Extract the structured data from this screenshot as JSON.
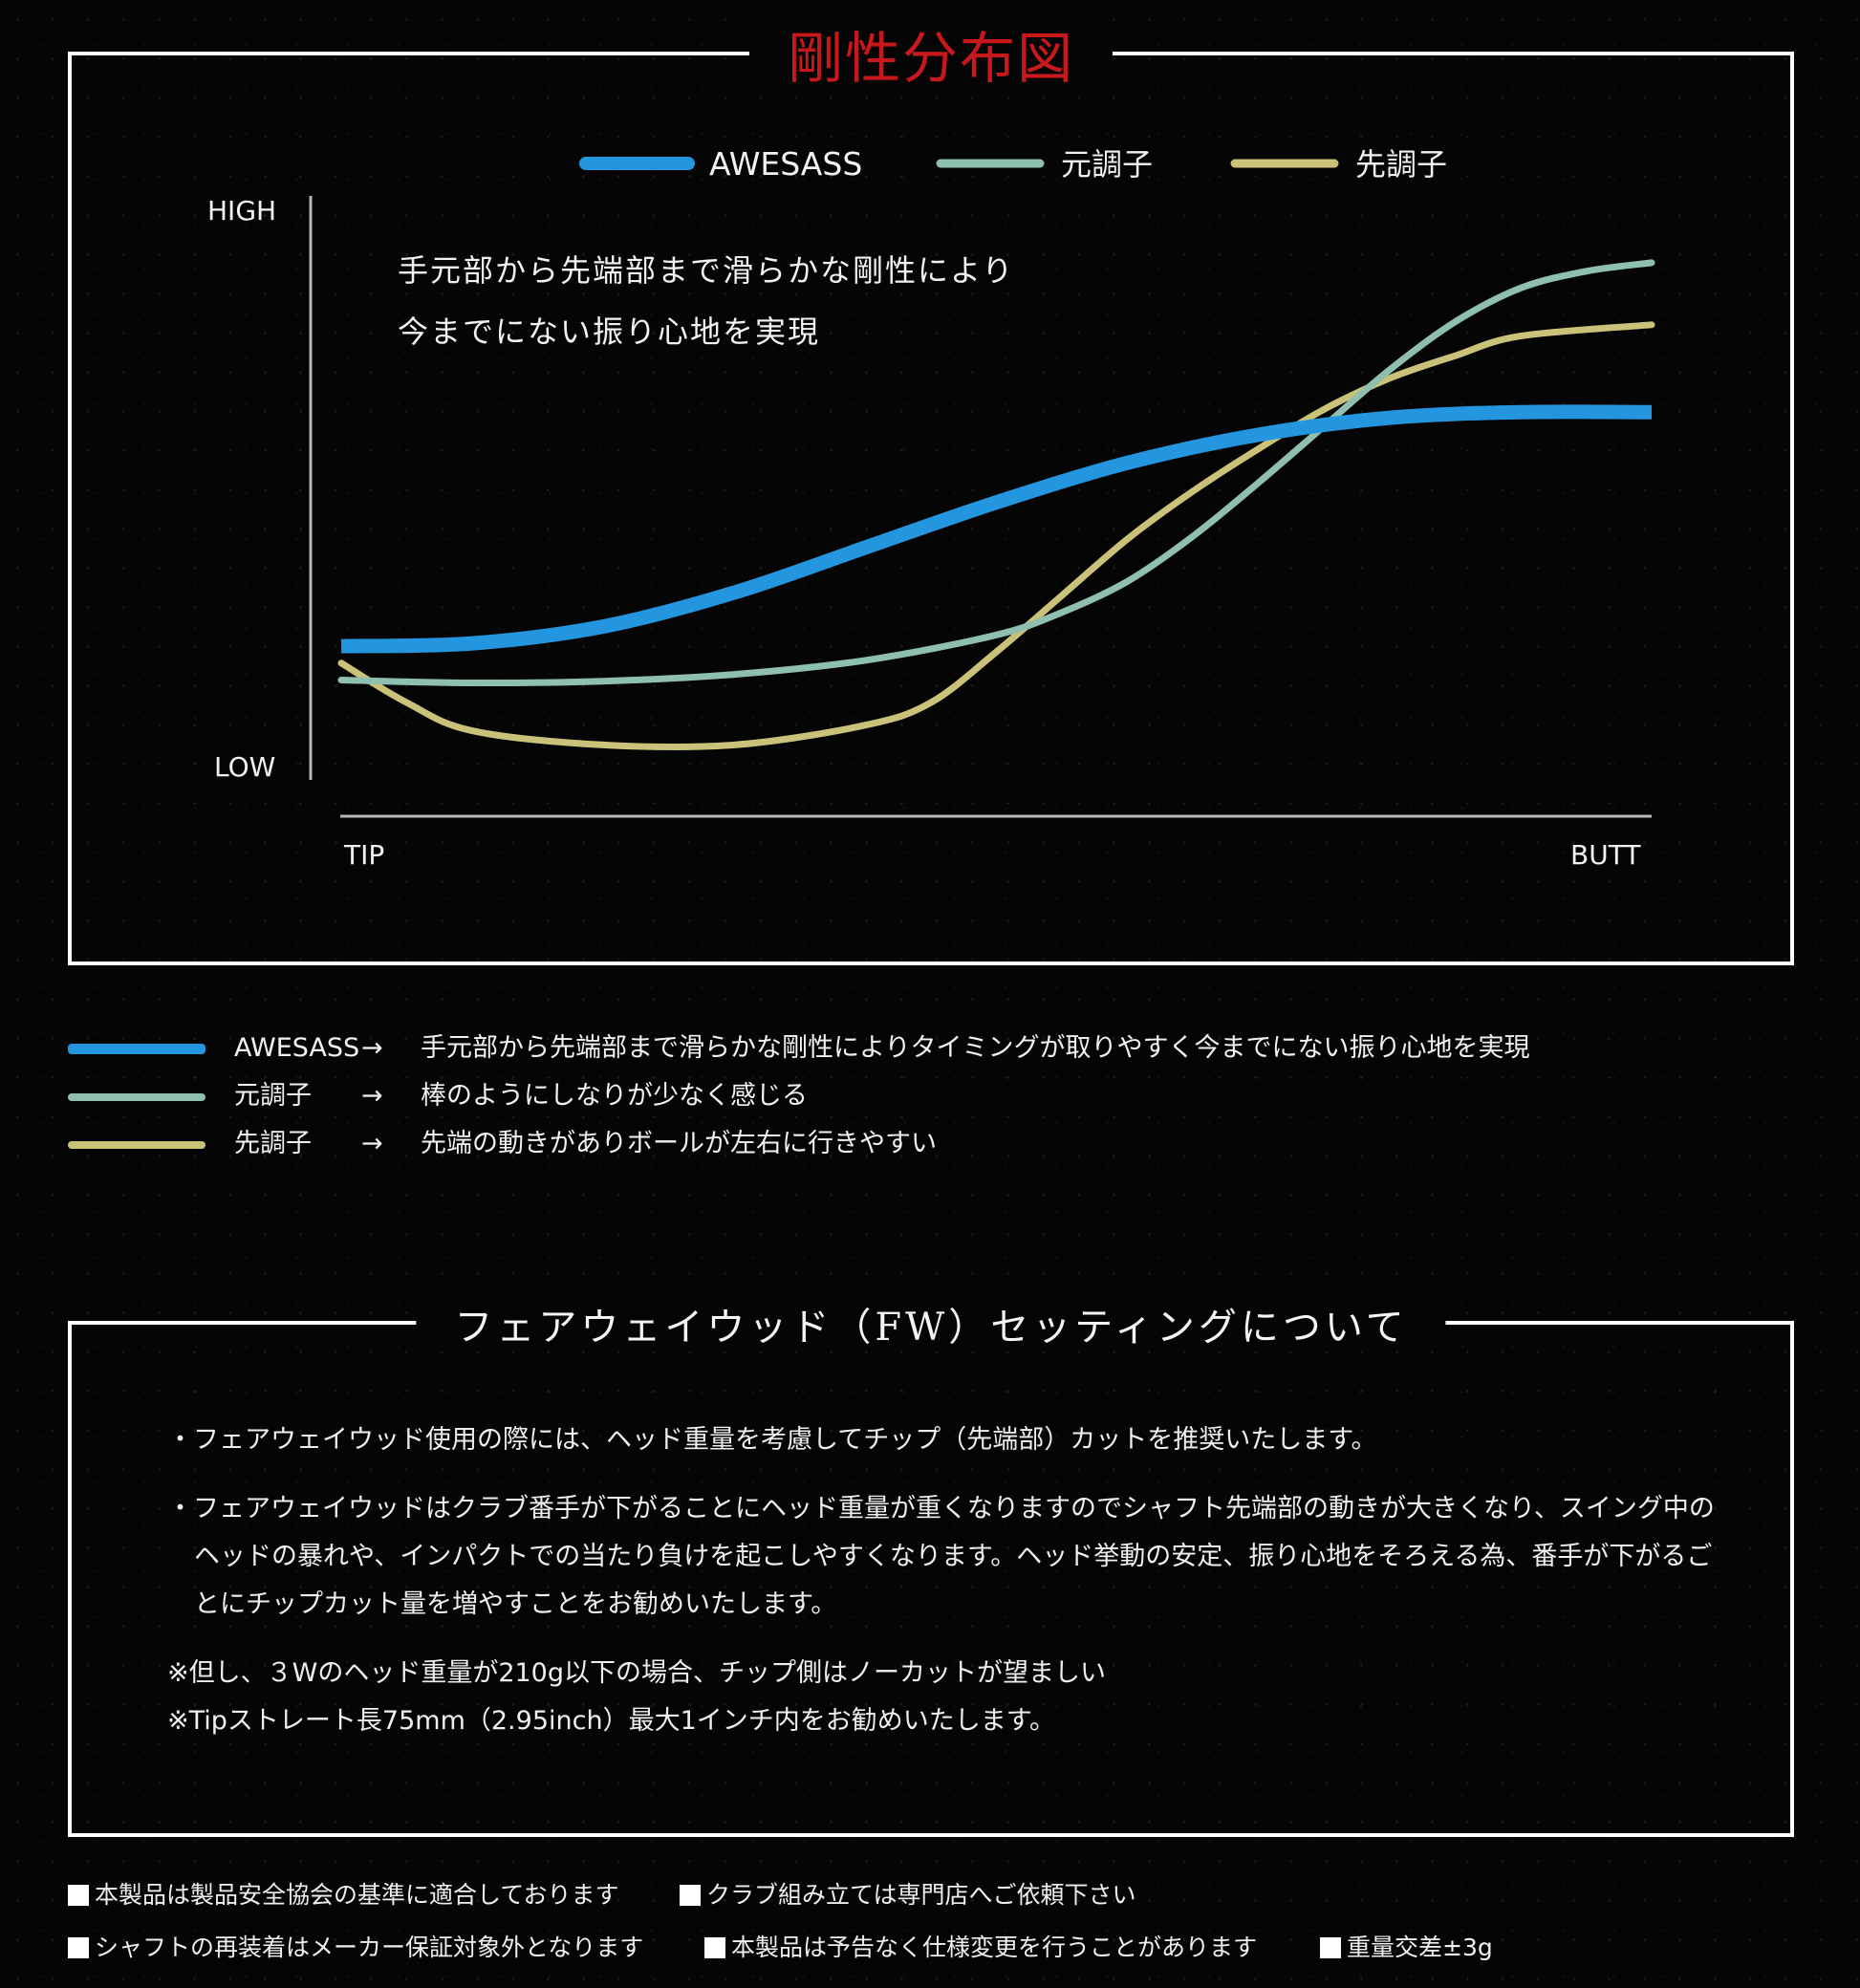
{
  "chart_data": {
    "type": "line",
    "title": "剛性分布図",
    "ylabel_high": "HIGH",
    "ylabel_low": "LOW",
    "xlabel_left": "TIP",
    "xlabel_right": "BUTT",
    "xlim": [
      0,
      100
    ],
    "ylim": [
      0,
      100
    ],
    "grid": false,
    "legend_position": "top-center",
    "annotation": [
      "手元部から先端部まで滑らかな剛性により",
      "今までにない振り心地を実現"
    ],
    "series": [
      {
        "name": "AWESASS",
        "color": "#2496e0",
        "x": [
          0,
          10,
          20,
          30,
          40,
          50,
          60,
          70,
          80,
          90,
          100
        ],
        "y": [
          21,
          21.5,
          24.5,
          30.5,
          38.5,
          46.5,
          53.5,
          58.5,
          61.5,
          62.5,
          62.5
        ]
      },
      {
        "name": "元調子",
        "color": "#8fbfae",
        "x": [
          0,
          10,
          20,
          30,
          40,
          50,
          55,
          60,
          65,
          70,
          75,
          80,
          85,
          90,
          95,
          100
        ],
        "y": [
          15,
          14.5,
          14.8,
          16,
          18.5,
          23,
          27,
          32.5,
          40.5,
          50,
          60,
          70,
          78.5,
          84.5,
          87.5,
          89
        ]
      },
      {
        "name": "先調子",
        "color": "#cbc27a",
        "x": [
          0,
          5,
          10,
          20,
          30,
          40,
          45,
          50,
          55,
          60,
          65,
          70,
          75,
          80,
          85,
          90,
          100
        ],
        "y": [
          18,
          11,
          6,
          3.5,
          3.5,
          7,
          11,
          20,
          30,
          40,
          48.5,
          56,
          63,
          68.5,
          72.5,
          76,
          78
        ]
      }
    ]
  },
  "legend_desc": [
    {
      "name": "AWESASS",
      "arrow": "→",
      "text": "手元部から先端部まで滑らかな剛性によりタイミングが取りやすく今までにない振り心地を実現",
      "color": "#2496e0"
    },
    {
      "name": "元調子",
      "arrow": "→",
      "text": "棒のようにしなりが少なく感じる",
      "color": "#8fbfae"
    },
    {
      "name": "先調子",
      "arrow": "→",
      "text": "先端の動きがありボールが左右に行きやすい",
      "color": "#cbc27a"
    }
  ],
  "fw": {
    "title": "フェアウェイウッド（FW）セッティングについて",
    "items": [
      "・フェアウェイウッド使用の際には、ヘッド重量を考慮してチップ（先端部）カットを推奨いたします。",
      "・フェアウェイウッドはクラブ番手が下がることにヘッド重量が重くなりますのでシャフト先端部の動きが大きくなり、スイング中のヘッドの暴れや、インパクトでの当たり負けを起こしやすくなります。ヘッド挙動の安定、振り心地をそろえる為、番手が下がるごとにチップカット量を増やすことをお勧めいたします。"
    ],
    "notes": [
      "※但し、３Wのヘッド重量が210g以下の場合、チップ側はノーカットが望ましい",
      "※Tipストレート長75mm（2.95inch）最大1インチ内をお勧めいたします。"
    ]
  },
  "footer": {
    "row1": [
      "本製品は製品安全協会の基準に適合しております",
      "クラブ組み立ては専門店へご依頼下さい"
    ],
    "row2": [
      "シャフトの再装着はメーカー保証対象外となります",
      "本製品は予告なく仕様変更を行うことがあります",
      "重量交差±3g"
    ]
  }
}
